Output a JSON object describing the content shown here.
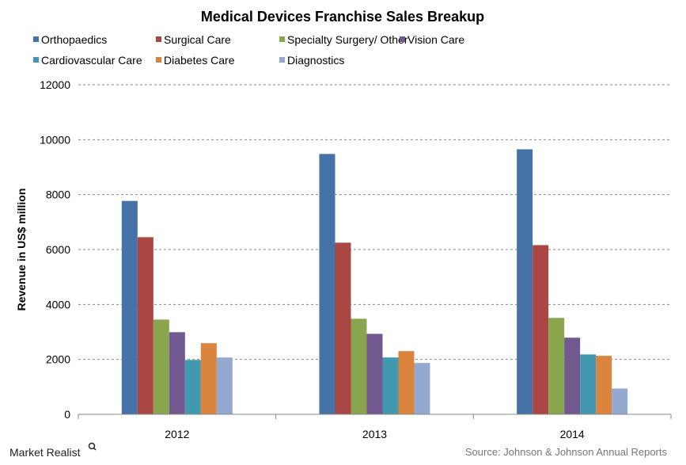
{
  "chart_data": {
    "type": "bar",
    "title": "Medical Devices Franchise Sales Breakup",
    "xlabel": "",
    "ylabel": "Revenue in US$ million",
    "ylim": [
      0,
      12000
    ],
    "yticks": [
      0,
      2000,
      4000,
      6000,
      8000,
      10000,
      12000
    ],
    "grid": true,
    "legend_placement": "top",
    "categories": [
      "2012",
      "2013",
      "2014"
    ],
    "series": [
      {
        "name": "Orthopaedics",
        "color": "#4572a7",
        "values": [
          7770,
          9480,
          9650
        ]
      },
      {
        "name": "Surgical Care",
        "color": "#aa4643",
        "values": [
          6450,
          6250,
          6160
        ]
      },
      {
        "name": "Specialty Surgery/ Other",
        "color": "#89a54e",
        "values": [
          3450,
          3480,
          3510
        ]
      },
      {
        "name": "Vision Care",
        "color": "#71588f",
        "values": [
          2990,
          2930,
          2790
        ]
      },
      {
        "name": "Cardiovascular Care",
        "color": "#4198af",
        "values": [
          1980,
          2070,
          2180
        ]
      },
      {
        "name": "Diabetes Care",
        "color": "#db843d",
        "values": [
          2590,
          2300,
          2130
        ]
      },
      {
        "name": "Diagnostics",
        "color": "#93a9cf",
        "values": [
          2070,
          1870,
          940
        ]
      }
    ]
  },
  "footer": {
    "logo": "Market Realist",
    "source": "Source: Johnson & Johnson Annual Reports"
  }
}
